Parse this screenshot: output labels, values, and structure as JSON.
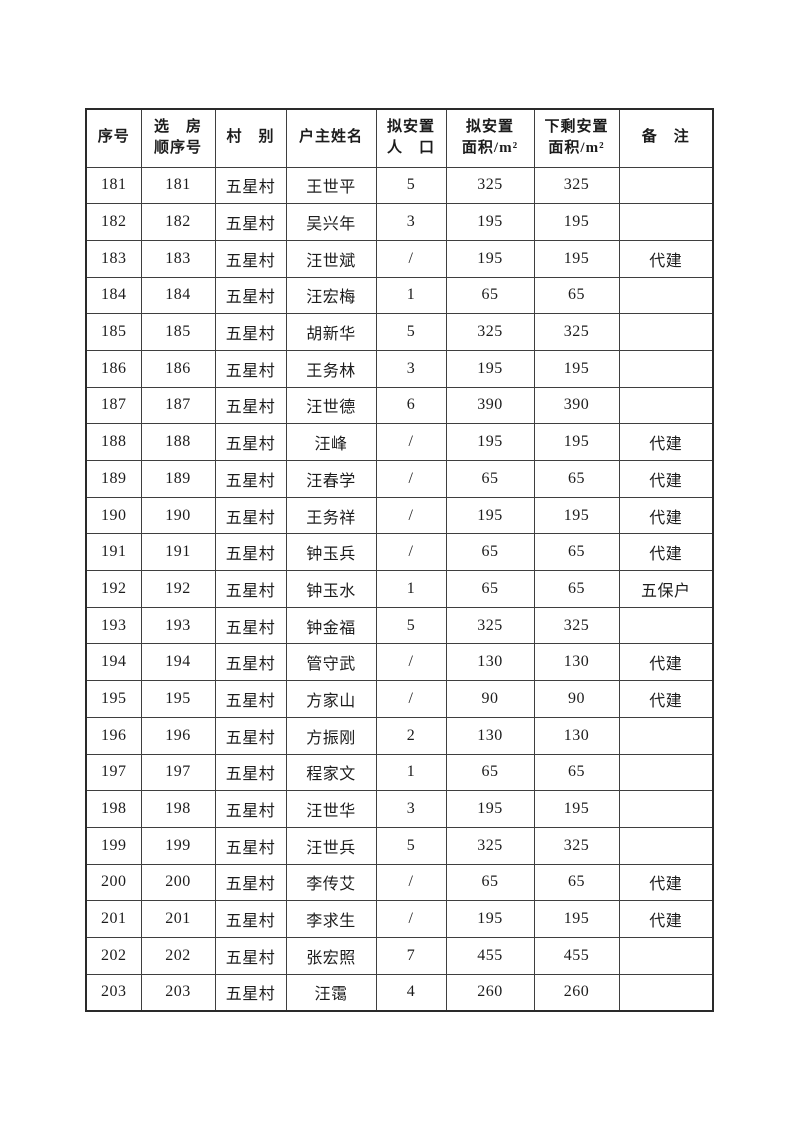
{
  "page": {
    "background_color": "#ffffff",
    "text_color": "#1c1c1c",
    "table_border_color": "#3f3f3f"
  },
  "table": {
    "columns": [
      {
        "key": "index",
        "lines": [
          "序号"
        ]
      },
      {
        "key": "selection_order",
        "lines": [
          "选　房",
          "顺序号"
        ]
      },
      {
        "key": "village",
        "lines": [
          "村　别"
        ]
      },
      {
        "key": "householder",
        "lines": [
          "户主姓名"
        ]
      },
      {
        "key": "population",
        "lines": [
          "拟安置",
          "人　口"
        ]
      },
      {
        "key": "planned_area",
        "lines": [
          "拟安置",
          "面积/m²"
        ]
      },
      {
        "key": "remaining_area",
        "lines": [
          "下剩安置",
          "面积/m²"
        ]
      },
      {
        "key": "remark",
        "lines": [
          "备　注"
        ]
      }
    ],
    "rows": [
      {
        "index": "181",
        "selection_order": "181",
        "village": "五星村",
        "householder": "王世平",
        "population": "5",
        "planned_area": "325",
        "remaining_area": "325",
        "remark": ""
      },
      {
        "index": "182",
        "selection_order": "182",
        "village": "五星村",
        "householder": "吴兴年",
        "population": "3",
        "planned_area": "195",
        "remaining_area": "195",
        "remark": ""
      },
      {
        "index": "183",
        "selection_order": "183",
        "village": "五星村",
        "householder": "汪世斌",
        "population": "/",
        "planned_area": "195",
        "remaining_area": "195",
        "remark": "代建"
      },
      {
        "index": "184",
        "selection_order": "184",
        "village": "五星村",
        "householder": "汪宏梅",
        "population": "1",
        "planned_area": "65",
        "remaining_area": "65",
        "remark": ""
      },
      {
        "index": "185",
        "selection_order": "185",
        "village": "五星村",
        "householder": "胡新华",
        "population": "5",
        "planned_area": "325",
        "remaining_area": "325",
        "remark": ""
      },
      {
        "index": "186",
        "selection_order": "186",
        "village": "五星村",
        "householder": "王务林",
        "population": "3",
        "planned_area": "195",
        "remaining_area": "195",
        "remark": ""
      },
      {
        "index": "187",
        "selection_order": "187",
        "village": "五星村",
        "householder": "汪世德",
        "population": "6",
        "planned_area": "390",
        "remaining_area": "390",
        "remark": ""
      },
      {
        "index": "188",
        "selection_order": "188",
        "village": "五星村",
        "householder": "汪峰",
        "population": "/",
        "planned_area": "195",
        "remaining_area": "195",
        "remark": "代建"
      },
      {
        "index": "189",
        "selection_order": "189",
        "village": "五星村",
        "householder": "汪春学",
        "population": "/",
        "planned_area": "65",
        "remaining_area": "65",
        "remark": "代建"
      },
      {
        "index": "190",
        "selection_order": "190",
        "village": "五星村",
        "householder": "王务祥",
        "population": "/",
        "planned_area": "195",
        "remaining_area": "195",
        "remark": "代建"
      },
      {
        "index": "191",
        "selection_order": "191",
        "village": "五星村",
        "householder": "钟玉兵",
        "population": "/",
        "planned_area": "65",
        "remaining_area": "65",
        "remark": "代建"
      },
      {
        "index": "192",
        "selection_order": "192",
        "village": "五星村",
        "householder": "钟玉水",
        "population": "1",
        "planned_area": "65",
        "remaining_area": "65",
        "remark": "五保户"
      },
      {
        "index": "193",
        "selection_order": "193",
        "village": "五星村",
        "householder": "钟金福",
        "population": "5",
        "planned_area": "325",
        "remaining_area": "325",
        "remark": ""
      },
      {
        "index": "194",
        "selection_order": "194",
        "village": "五星村",
        "householder": "管守武",
        "population": "/",
        "planned_area": "130",
        "remaining_area": "130",
        "remark": "代建"
      },
      {
        "index": "195",
        "selection_order": "195",
        "village": "五星村",
        "householder": "方家山",
        "population": "/",
        "planned_area": "90",
        "remaining_area": "90",
        "remark": "代建"
      },
      {
        "index": "196",
        "selection_order": "196",
        "village": "五星村",
        "householder": "方振刚",
        "population": "2",
        "planned_area": "130",
        "remaining_area": "130",
        "remark": ""
      },
      {
        "index": "197",
        "selection_order": "197",
        "village": "五星村",
        "householder": "程家文",
        "population": "1",
        "planned_area": "65",
        "remaining_area": "65",
        "remark": ""
      },
      {
        "index": "198",
        "selection_order": "198",
        "village": "五星村",
        "householder": "汪世华",
        "population": "3",
        "planned_area": "195",
        "remaining_area": "195",
        "remark": ""
      },
      {
        "index": "199",
        "selection_order": "199",
        "village": "五星村",
        "householder": "汪世兵",
        "population": "5",
        "planned_area": "325",
        "remaining_area": "325",
        "remark": ""
      },
      {
        "index": "200",
        "selection_order": "200",
        "village": "五星村",
        "householder": "李传艾",
        "population": "/",
        "planned_area": "65",
        "remaining_area": "65",
        "remark": "代建"
      },
      {
        "index": "201",
        "selection_order": "201",
        "village": "五星村",
        "householder": "李求生",
        "population": "/",
        "planned_area": "195",
        "remaining_area": "195",
        "remark": "代建"
      },
      {
        "index": "202",
        "selection_order": "202",
        "village": "五星村",
        "householder": "张宏照",
        "population": "7",
        "planned_area": "455",
        "remaining_area": "455",
        "remark": ""
      },
      {
        "index": "203",
        "selection_order": "203",
        "village": "五星村",
        "householder": "汪霭",
        "population": "4",
        "planned_area": "260",
        "remaining_area": "260",
        "remark": ""
      }
    ]
  }
}
